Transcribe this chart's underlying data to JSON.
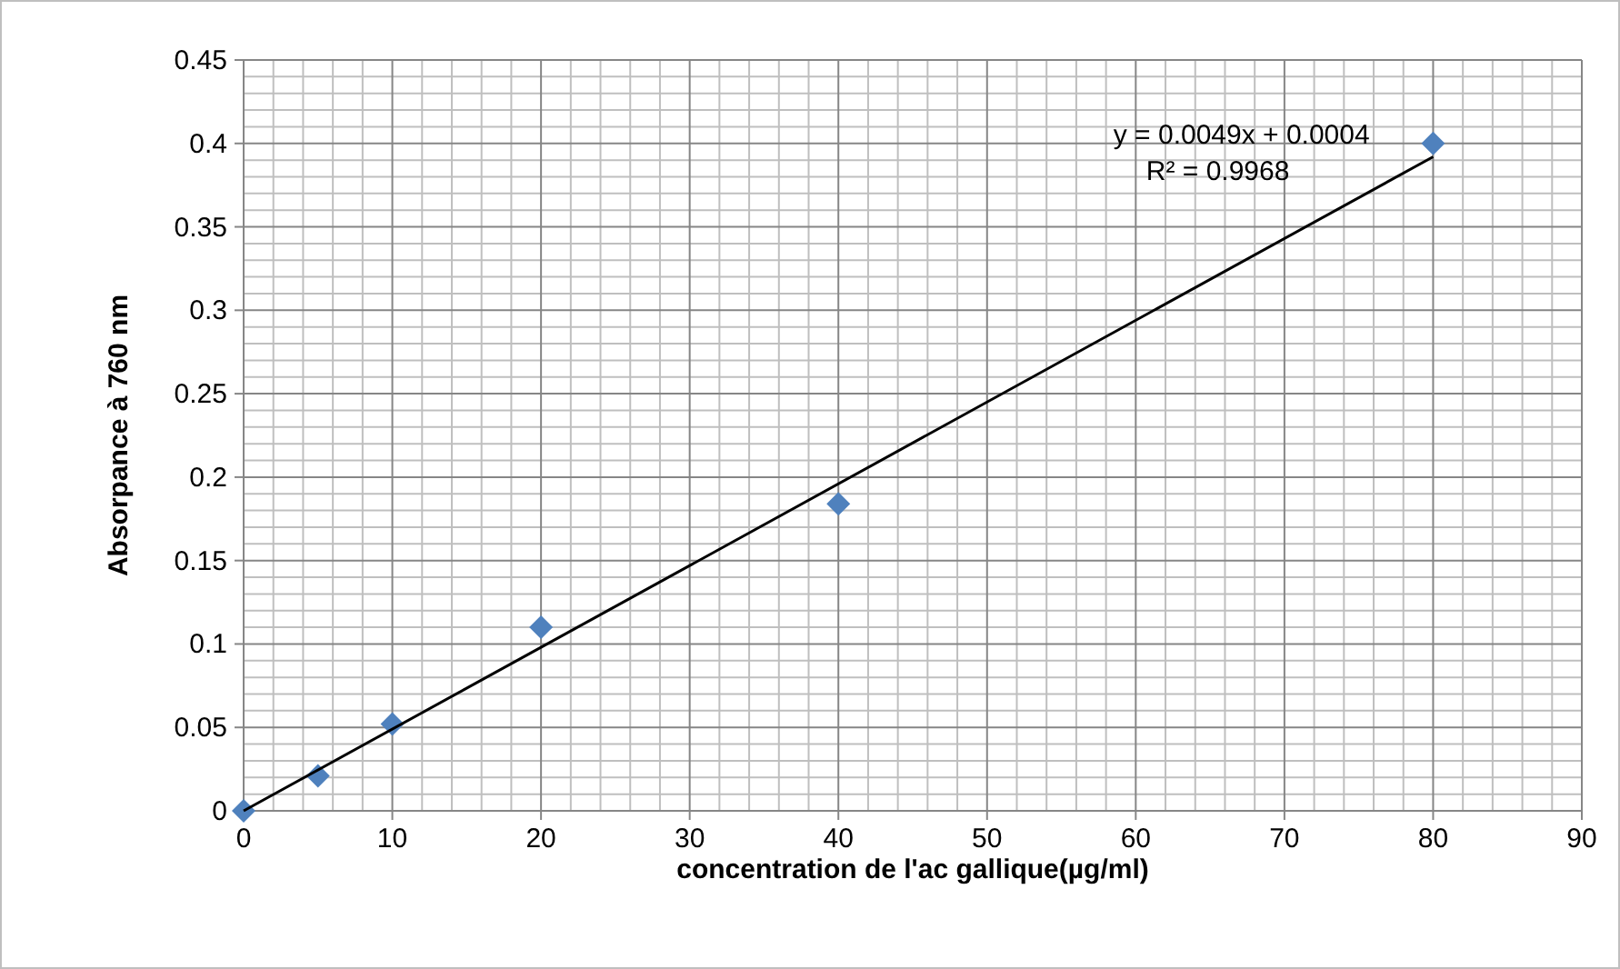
{
  "chart_data": {
    "type": "scatter",
    "xlabel": "concentration de l'ac gallique(µg/ml)",
    "ylabel": "Absorpance à 760 nm",
    "x": [
      0,
      5,
      10,
      20,
      40,
      80
    ],
    "series": [
      {
        "color": "#4f81bd",
        "marker": "diamond",
        "values": [
          0,
          0.021,
          0.052,
          0.11,
          0.184,
          0.4
        ]
      },
      {
        "type": "line",
        "color": "#000000",
        "marker": "none",
        "line_style": "solid",
        "x": [
          0,
          80
        ],
        "values": [
          0,
          0.392
        ]
      }
    ],
    "annotations": [
      "y = 0.0049x + 0.0004",
      "R² = 0.9968"
    ],
    "xlim": [
      0,
      90
    ],
    "xticks": [
      0,
      10,
      20,
      30,
      40,
      50,
      60,
      70,
      80,
      90
    ],
    "ylim": [
      0,
      0.45
    ],
    "yticks": [
      0,
      0.05,
      0.1,
      0.15,
      0.2,
      0.25,
      0.3,
      0.35,
      0.4,
      0.45
    ],
    "grid": true
  }
}
